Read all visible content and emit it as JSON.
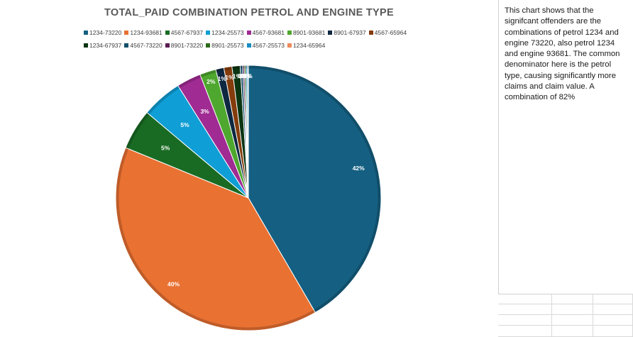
{
  "chart_data": {
    "type": "pie",
    "title": "TOTAL_PAID COMBINATION PETROL AND ENGINE TYPE",
    "categories": [
      "1234-73220",
      "1234-93681",
      "4567-67937",
      "1234-25573",
      "4567-93681",
      "8901-93681",
      "8901-67937",
      "4567-65964",
      "1234-67937",
      "4567-73220",
      "8901-73220",
      "8901-25573",
      "4567-25573",
      "1234-65964"
    ],
    "values": [
      42,
      40,
      5,
      5,
      3,
      2,
      1,
      1,
      1,
      0.3,
      0.2,
      0.2,
      0.2,
      0.1
    ],
    "data_labels": [
      "42%",
      "40%",
      "5%",
      "5%",
      "3%",
      "2%",
      "1%",
      "1%",
      "1%",
      "0%",
      "0%",
      "0%",
      "0%",
      "0%"
    ],
    "colors": [
      "#156082",
      "#e97132",
      "#196b24",
      "#0f9ed5",
      "#a02b93",
      "#4ea72e",
      "#0e2841",
      "#843c0c",
      "#0b3512",
      "#12506b",
      "#5b1c55",
      "#2e6b1b",
      "#1a8bc2",
      "#ee8a5c"
    ],
    "legend_position": "top"
  },
  "note": {
    "text": "This chart shows that the signifcant offenders are the combinations of petrol 1234 and engine 73220, also petrol 1234 and engine 93681. The common denominator here is the petrol type, causing significantly more claims and claim value. A combination of 82%"
  }
}
